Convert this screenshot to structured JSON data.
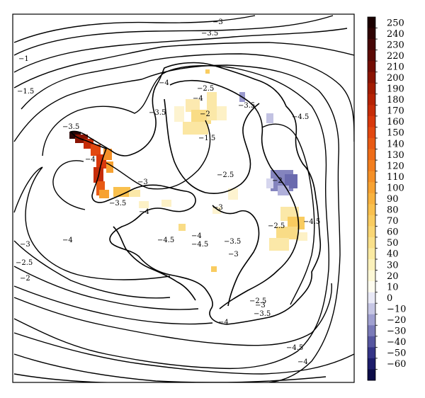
{
  "contour_labels": {
    "outer_top": "−3",
    "outer_top2": "−3.5",
    "left_1": "−1",
    "left_15": "−1.5",
    "peninsula_35": "−3.5",
    "peninsula_4": "−4",
    "left_3": "−3",
    "left_25": "−2.5",
    "left_2": "−2",
    "left_4": "−4",
    "inner_4a": "−4",
    "inner_25a": "−2.5",
    "inner_35a": "−3.5",
    "inner_4b": "−4",
    "inner_35b": "−3.5",
    "inner_2a": "−2",
    "inner_15": "−1.5",
    "inner_45a": "−4.5",
    "inner_25b": "−2.5",
    "inner_3a": "−3",
    "inner_35c": "−3.5",
    "inner_4c": "−4",
    "inner_3b": "−3",
    "inner_35d": "−3.5",
    "inner_45b": "−4.5",
    "inner_4d": "−4",
    "inner_45c": "−4.5",
    "inner_2b": "−2",
    "inner_25c": "−2.5",
    "inner_45d": "−4.5",
    "inner_3c": "−3",
    "inner_25d": "−2.5",
    "inner_3d": "−3",
    "inner_35e": "−3.5",
    "inner_4e": "−4",
    "bottom_45": "−4.5",
    "bottom_4": "−4"
  },
  "colorbar": {
    "ticks": [
      "250",
      "240",
      "230",
      "220",
      "210",
      "200",
      "190",
      "180",
      "170",
      "160",
      "150",
      "140",
      "130",
      "120",
      "110",
      "100",
      "90",
      "80",
      "70",
      "60",
      "50",
      "40",
      "30",
      "20",
      "10",
      "0",
      "−10",
      "−20",
      "−30",
      "−40",
      "−50",
      "−60"
    ],
    "colors": [
      "#1a0000",
      "#2e0303",
      "#460606",
      "#5c0a05",
      "#730d04",
      "#8a1403",
      "#a21c02",
      "#b52204",
      "#c62c08",
      "#d8380c",
      "#e24810",
      "#e85a14",
      "#ee6c18",
      "#f27e1e",
      "#f59027",
      "#f7a232",
      "#f8b23f",
      "#f9c04e",
      "#f9cc60",
      "#f9d674",
      "#f9e08a",
      "#faeaa2",
      "#fbf1bb",
      "#fdf8d6",
      "#fefcef",
      "#e9e9f6",
      "#c6c6e4",
      "#a0a0d0",
      "#7a7ab8",
      "#5656a0",
      "#343487",
      "#1c1c6a",
      "#0c0c48"
    ]
  },
  "colors": {
    "warm_low": "#fbe8a0",
    "warm_mid": "#f7a031",
    "warm_high": "#c83010",
    "warm_max": "#2a0505",
    "cool_low": "#c8c8e6",
    "cool_mid": "#8484be"
  }
}
